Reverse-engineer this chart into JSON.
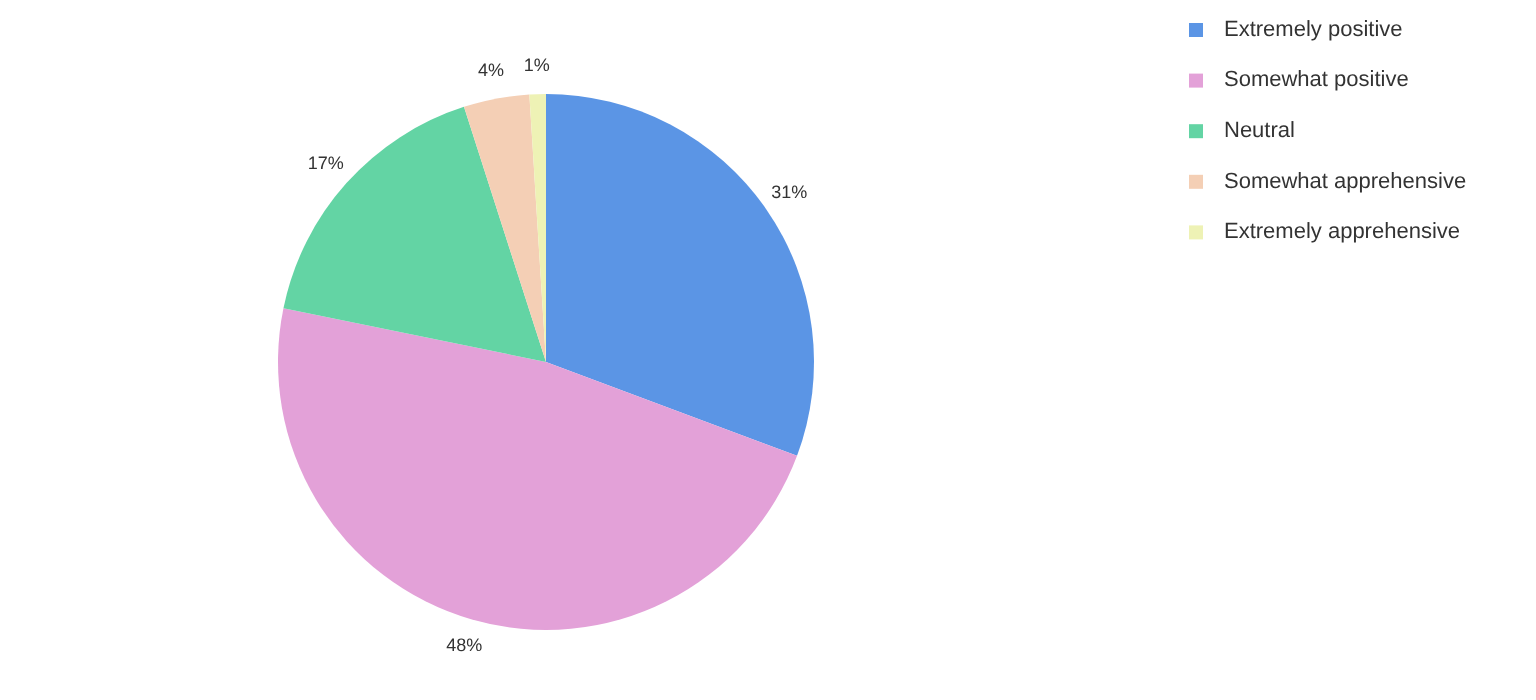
{
  "chart_data": {
    "type": "pie",
    "categories": [
      "Extremely positive",
      "Somewhat positive",
      "Neutral",
      "Somewhat apprehensive",
      "Extremely apprehensive"
    ],
    "values": [
      31,
      48,
      17,
      4,
      1
    ],
    "colors": [
      "#5b95e5",
      "#e3a1d8",
      "#63d4a4",
      "#f4cfb5",
      "#eef2b5"
    ],
    "value_labels": [
      "31%",
      "48%",
      "17%",
      "4%",
      "1%"
    ],
    "legend": "top right"
  }
}
